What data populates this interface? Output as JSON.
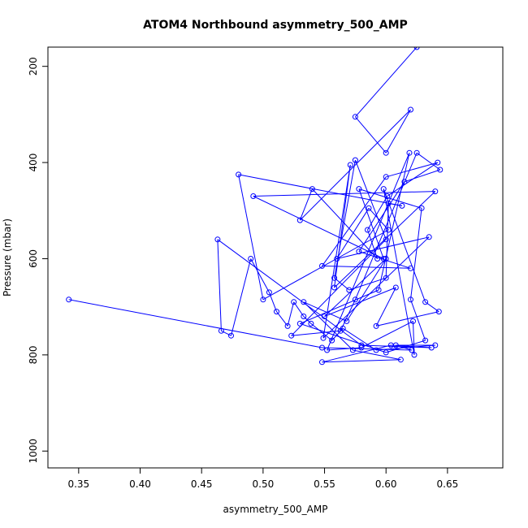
{
  "chart_data": {
    "type": "line",
    "title": "ATOM4 Northbound asymmetry_500_AMP",
    "xlabel": "asymmetry_500_AMP",
    "ylabel": "Pressure (mbar)",
    "xlim": [
      0.325,
      0.695
    ],
    "ylim": [
      1035,
      160
    ],
    "y_reversed": true,
    "x_ticks": [
      "0.35",
      "0.40",
      "0.45",
      "0.50",
      "0.55",
      "0.60",
      "0.65"
    ],
    "y_ticks": [
      "200",
      "400",
      "600",
      "800",
      "1000"
    ],
    "grid": false,
    "legend": "none",
    "series": [
      {
        "color": "#0000ff",
        "marker": "open-circle",
        "x": [
          0.625,
          0.575,
          0.6,
          0.62,
          0.53,
          0.54,
          0.593,
          0.585,
          0.601,
          0.642,
          0.6,
          0.548,
          0.62,
          0.578,
          0.615,
          0.644,
          0.625,
          0.575,
          0.563,
          0.523,
          0.6,
          0.575,
          0.558,
          0.57,
          0.6,
          0.602,
          0.613,
          0.48,
          0.5,
          0.602,
          0.586,
          0.56,
          0.635,
          0.549,
          0.571,
          0.558,
          0.64,
          0.492,
          0.598,
          0.578,
          0.629,
          0.62,
          0.632,
          0.6,
          0.53,
          0.594,
          0.619,
          0.552,
          0.58,
          0.622,
          0.623,
          0.598,
          0.632,
          0.643,
          0.592,
          0.608,
          0.55,
          0.6,
          0.568,
          0.533,
          0.573,
          0.612,
          0.548,
          0.604,
          0.637,
          0.58,
          0.463,
          0.466,
          0.474,
          0.49,
          0.505,
          0.511,
          0.52,
          0.525,
          0.533,
          0.539,
          0.556,
          0.565,
          0.592,
          0.64,
          0.608,
          0.621,
          0.548,
          0.342
        ],
        "y": [
          160,
          305,
          380,
          290,
          520,
          455,
          600,
          540,
          470,
          400,
          430,
          615,
          620,
          585,
          440,
          415,
          380,
          685,
          750,
          760,
          560,
          395,
          640,
          665,
          640,
          485,
          490,
          425,
          685,
          540,
          495,
          600,
          555,
          765,
          405,
          660,
          460,
          470,
          600,
          455,
          495,
          685,
          770,
          795,
          735,
          665,
          380,
          790,
          785,
          730,
          800,
          455,
          690,
          710,
          740,
          660,
          720,
          600,
          730,
          690,
          790,
          810,
          815,
          780,
          785,
          780,
          560,
          750,
          760,
          600,
          670,
          710,
          740,
          690,
          720,
          735,
          770,
          745,
          790,
          780,
          780,
          790,
          785,
          685
        ]
      }
    ]
  }
}
